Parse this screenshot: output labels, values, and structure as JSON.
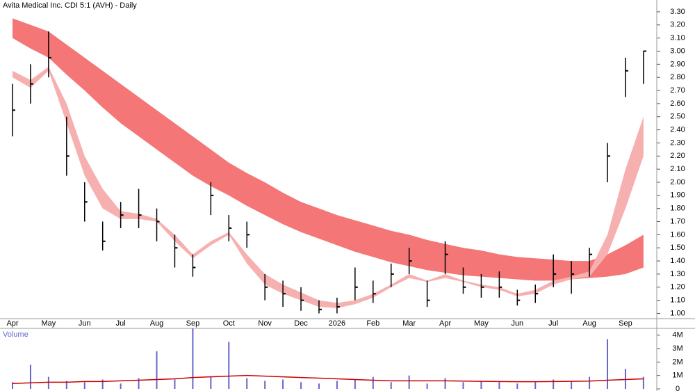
{
  "chart_data": [
    {
      "type": "candlestick",
      "title": "Avita Medical Inc. CDI 5:1 (AVH) - Daily",
      "categories": [
        "Apr",
        null,
        "May",
        null,
        "Jun",
        null,
        "Jul",
        null,
        "Aug",
        null,
        "Sep",
        null,
        "Oct",
        null,
        "Nov",
        null,
        "Dec",
        null,
        "2026",
        null,
        "Feb",
        null,
        "Mar",
        null,
        "Apr",
        null,
        "May",
        null,
        "Jun",
        null,
        "Jul",
        null,
        "Aug",
        null,
        "Sep",
        null
      ],
      "high": [
        2.75,
        2.9,
        3.15,
        2.5,
        2.0,
        1.7,
        1.85,
        1.95,
        1.8,
        1.6,
        1.45,
        2.0,
        1.75,
        1.7,
        1.3,
        1.25,
        1.2,
        1.1,
        1.12,
        1.35,
        1.25,
        1.38,
        1.5,
        1.25,
        1.55,
        1.35,
        1.3,
        1.32,
        1.18,
        1.22,
        1.45,
        1.4,
        1.5,
        2.3,
        2.95,
        3.0
      ],
      "low": [
        2.35,
        2.6,
        2.8,
        2.05,
        1.7,
        1.48,
        1.65,
        1.65,
        1.55,
        1.35,
        1.28,
        1.75,
        1.55,
        1.5,
        1.1,
        1.05,
        1.02,
        1.0,
        1.0,
        1.1,
        1.08,
        1.2,
        1.3,
        1.05,
        1.3,
        1.15,
        1.12,
        1.12,
        1.06,
        1.08,
        1.2,
        1.15,
        1.28,
        2.0,
        2.65,
        2.75
      ],
      "close": [
        2.55,
        2.75,
        2.95,
        2.2,
        1.85,
        1.55,
        1.75,
        1.75,
        1.7,
        1.5,
        1.35,
        1.9,
        1.65,
        1.6,
        1.2,
        1.15,
        1.1,
        1.03,
        1.05,
        1.2,
        1.15,
        1.3,
        1.4,
        1.1,
        1.45,
        1.2,
        1.2,
        1.2,
        1.1,
        1.15,
        1.3,
        1.3,
        1.45,
        2.2,
        2.85,
        3.0
      ],
      "candle_color": "#000000",
      "bands": [
        {
          "color": "#f47676",
          "upper": [
            3.25,
            3.2,
            3.15,
            3.05,
            2.95,
            2.85,
            2.75,
            2.65,
            2.55,
            2.45,
            2.35,
            2.25,
            2.15,
            2.07,
            2.0,
            1.92,
            1.85,
            1.8,
            1.75,
            1.71,
            1.67,
            1.63,
            1.6,
            1.56,
            1.53,
            1.5,
            1.48,
            1.45,
            1.43,
            1.42,
            1.41,
            1.4,
            1.4,
            1.45,
            1.52,
            1.6
          ],
          "lower": [
            3.1,
            3.02,
            2.95,
            2.82,
            2.7,
            2.57,
            2.45,
            2.35,
            2.25,
            2.15,
            2.05,
            1.97,
            1.9,
            1.82,
            1.75,
            1.68,
            1.62,
            1.57,
            1.52,
            1.47,
            1.43,
            1.39,
            1.36,
            1.33,
            1.31,
            1.29,
            1.28,
            1.27,
            1.26,
            1.25,
            1.25,
            1.26,
            1.27,
            1.28,
            1.3,
            1.35
          ]
        },
        {
          "color": "#f7b0b0",
          "upper": [
            2.85,
            2.78,
            2.88,
            2.6,
            2.2,
            1.95,
            1.78,
            1.76,
            1.72,
            1.6,
            1.45,
            1.55,
            1.62,
            1.45,
            1.3,
            1.22,
            1.16,
            1.1,
            1.08,
            1.1,
            1.15,
            1.22,
            1.3,
            1.25,
            1.3,
            1.25,
            1.22,
            1.2,
            1.15,
            1.18,
            1.25,
            1.28,
            1.32,
            1.6,
            2.1,
            2.5
          ],
          "lower": [
            2.8,
            2.72,
            2.85,
            2.45,
            2.05,
            1.8,
            1.72,
            1.72,
            1.7,
            1.55,
            1.42,
            1.52,
            1.6,
            1.38,
            1.22,
            1.15,
            1.1,
            1.05,
            1.04,
            1.07,
            1.12,
            1.2,
            1.27,
            1.24,
            1.27,
            1.24,
            1.2,
            1.18,
            1.13,
            1.15,
            1.22,
            1.26,
            1.28,
            1.45,
            1.8,
            2.2
          ]
        }
      ],
      "ylim": [
        0.96,
        3.39
      ],
      "yticks": [
        {
          "value": 1,
          "label": "1.00"
        },
        {
          "value": 1.1,
          "label": "1.10"
        },
        {
          "value": 1.2,
          "label": "1.20"
        },
        {
          "value": 1.3,
          "label": "1.30"
        },
        {
          "value": 1.4,
          "label": "1.40"
        },
        {
          "value": 1.5,
          "label": "1.50"
        },
        {
          "value": 1.6,
          "label": "1.60"
        },
        {
          "value": 1.7,
          "label": "1.70"
        },
        {
          "value": 1.8,
          "label": "1.80"
        },
        {
          "value": 1.9,
          "label": "1.90"
        },
        {
          "value": 2,
          "label": "2.00"
        },
        {
          "value": 2.1,
          "label": "2.10"
        },
        {
          "value": 2.2,
          "label": "2.20"
        },
        {
          "value": 2.3,
          "label": "2.30"
        },
        {
          "value": 2.4,
          "label": "2.40"
        },
        {
          "value": 2.5,
          "label": "2.50"
        },
        {
          "value": 2.6,
          "label": "2.60"
        },
        {
          "value": 2.7,
          "label": "2.70"
        },
        {
          "value": 2.8,
          "label": "2.80"
        },
        {
          "value": 2.9,
          "label": "2.90"
        },
        {
          "value": 3,
          "label": "3.00"
        },
        {
          "value": 3.1,
          "label": "3.10"
        },
        {
          "value": 3.2,
          "label": "3.20"
        },
        {
          "value": 3.3,
          "label": "3.30"
        }
      ]
    },
    {
      "type": "bar",
      "title": "Volume",
      "color": "#6666cc",
      "values": [
        500000,
        1800000,
        900000,
        600000,
        500000,
        700000,
        400000,
        800000,
        2800000,
        700000,
        4500000,
        900000,
        3500000,
        800000,
        600000,
        700000,
        500000,
        400000,
        600000,
        700000,
        900000,
        500000,
        1000000,
        400000,
        800000,
        500000,
        600000,
        500000,
        400000,
        500000,
        700000,
        600000,
        900000,
        3700000,
        1500000,
        900000
      ],
      "average": [
        400000,
        450000,
        500000,
        500000,
        550000,
        550000,
        600000,
        650000,
        700000,
        750000,
        850000,
        900000,
        950000,
        1000000,
        950000,
        900000,
        850000,
        800000,
        750000,
        700000,
        650000,
        600000,
        600000,
        600000,
        600000,
        580000,
        560000,
        550000,
        540000,
        540000,
        550000,
        560000,
        580000,
        650000,
        700000,
        750000
      ],
      "average_color": "#cc0000",
      "ylim": [
        0,
        4400000
      ],
      "yticks": [
        0,
        {
          "value": 1000000,
          "label": "1M"
        },
        {
          "value": 2000000,
          "label": "2M"
        },
        {
          "value": 3000000,
          "label": "3M"
        },
        {
          "value": 4000000,
          "label": "4M"
        }
      ]
    }
  ]
}
